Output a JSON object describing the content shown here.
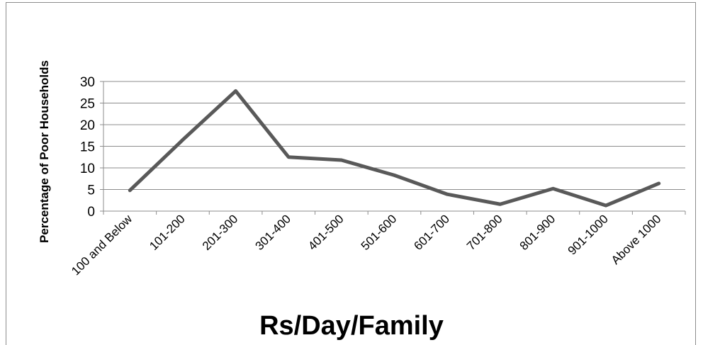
{
  "chart_data": {
    "type": "line",
    "title": "",
    "xlabel": "Rs/Day/Family",
    "ylabel": "Percentage of Poor Households",
    "categories": [
      "100 and Below",
      "101-200",
      "201-300",
      "301-400",
      "401-500",
      "501-600",
      "601-700",
      "701-800",
      "801-900",
      "901-1000",
      "Above 1000"
    ],
    "series": [
      {
        "values": [
          4.8,
          16.5,
          27.8,
          12.5,
          11.8,
          8.3,
          3.9,
          1.6,
          5.2,
          1.3,
          6.4
        ],
        "color": "#595959"
      }
    ],
    "ylim": [
      0,
      30
    ],
    "yticks": [
      "0",
      "5",
      "10",
      "15",
      "20",
      "25",
      "30"
    ],
    "grid": true,
    "legend": "none"
  }
}
